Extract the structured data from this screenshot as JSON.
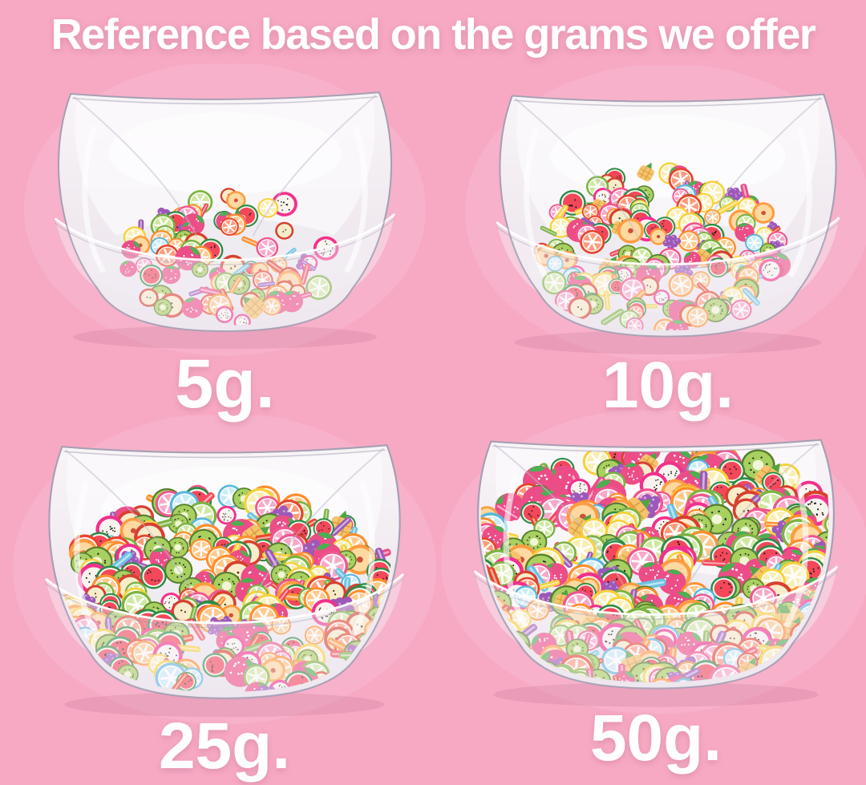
{
  "title": {
    "text": "Reference based on the grams we offer"
  },
  "colors": {
    "background": "#f7a9c4",
    "heading_text": "#ffffff",
    "label_text": "#ffffff",
    "bowl_plastic_edge": "#b2abbd",
    "bowl_plastic_fill": "#f2eff4"
  },
  "contents_description": "Clear square plastic bowls holding assorted fruit-shaped polymer clay slices",
  "bowls": [
    {
      "label": "5g.",
      "grams": 5,
      "fullness": "small pile in the centre of the bowl floor"
    },
    {
      "label": "10g.",
      "grams": 10,
      "fullness": "larger mound on the bowl floor"
    },
    {
      "label": "25g.",
      "grams": 25,
      "fullness": "slices cover the whole bowl floor"
    },
    {
      "label": "50g.",
      "grams": 50,
      "fullness": "bowl filled nearly to the rim"
    }
  ],
  "fruit_types": [
    "orange",
    "lemon",
    "lime",
    "grapefruit",
    "blood_orange",
    "blue_citrus",
    "kiwi",
    "watermelon",
    "strawberry",
    "apple",
    "grape",
    "dragonfruit",
    "pineapple",
    "peach"
  ],
  "palette": {
    "orange": {
      "rim": "#ff8f2e",
      "flesh": "#ffc98c"
    },
    "lemon": {
      "rim": "#f7d23e",
      "flesh": "#fbeeb3"
    },
    "lime": {
      "rim": "#7cb342",
      "flesh": "#cfe8a0"
    },
    "grapefruit": {
      "rim": "#f0568f",
      "flesh": "#f9a8c9"
    },
    "blood_orange": {
      "rim": "#e8452c",
      "flesh": "#ff9b7a"
    },
    "blue_citrus": {
      "rim": "#5bb7e0",
      "flesh": "#c8ecf9"
    },
    "kiwi": {
      "skin": "#567d2e",
      "flesh": "#a8d060",
      "core": "#f1f6d8",
      "seed": "#222222"
    },
    "watermelon": {
      "rind": "#2e8b46",
      "ring": "#f2f7ec",
      "flesh": "#f3475a",
      "seed": "#1d1d1d"
    },
    "strawberry": {
      "body": "#ec4d87",
      "dots": "#ffffff",
      "leaf": "#4caf50"
    },
    "apple": {
      "rim": "#d8402f",
      "flesh": "#f8ecca",
      "seed": "#4a2c12"
    },
    "grape": {
      "berry": "#9c59b8",
      "shine": "#cfa3e3"
    },
    "dragonfruit": {
      "rim": "#f2318c",
      "flesh": "#faf4ef",
      "seed": "#111111"
    },
    "pineapple": {
      "body": "#f5c36b",
      "grid": "#d99b3c",
      "leaf": "#55a345"
    },
    "peach": {
      "rim": "#ff9c40",
      "flesh": "#ffd9a0",
      "pit": "#d04f3a"
    },
    "edge_colors": [
      "#f7d23e",
      "#7cb342",
      "#ff8f2e",
      "#ec4d87",
      "#e8452c",
      "#6ac3e4",
      "#9c59b8",
      "#f3475a"
    ]
  }
}
